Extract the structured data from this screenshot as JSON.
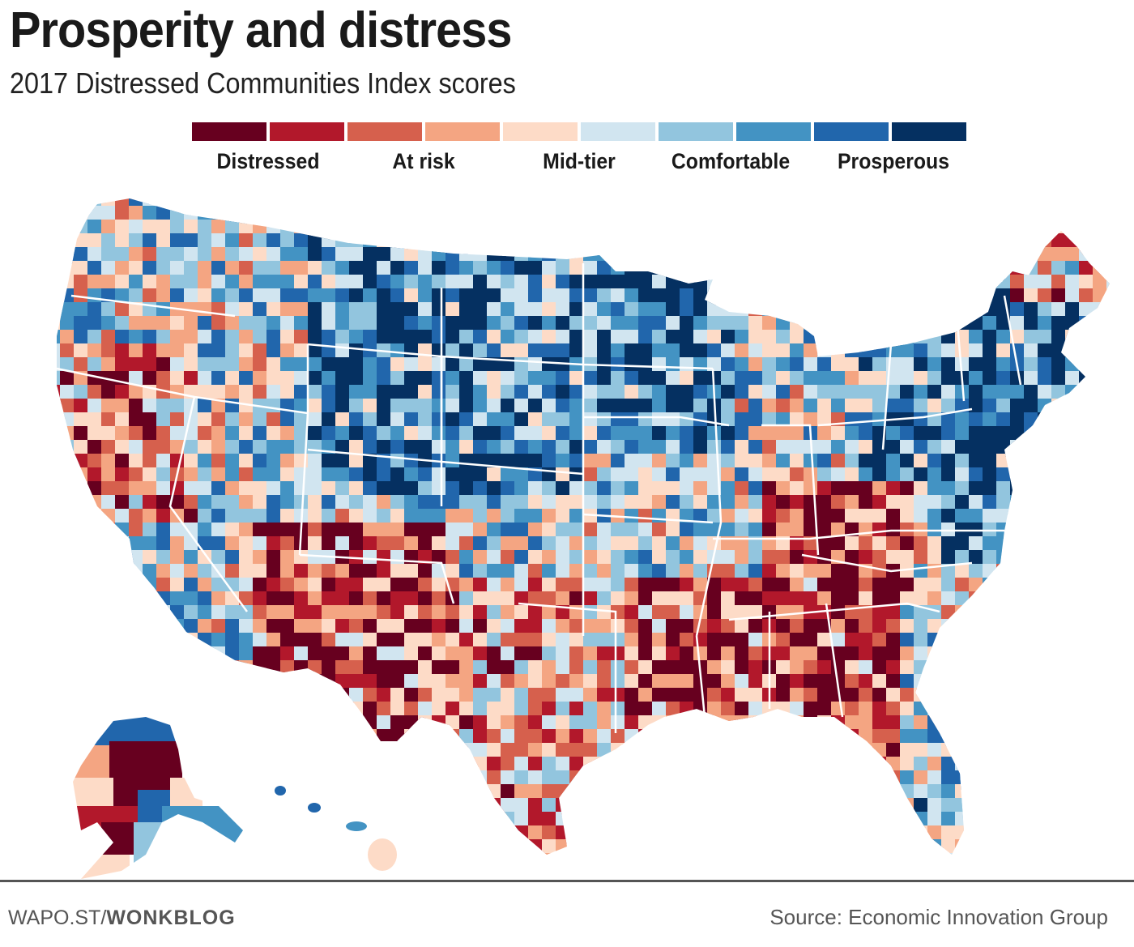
{
  "header": {
    "title": "Prosperity and distress",
    "subtitle": "2017 Distressed Communities Index scores"
  },
  "legend": {
    "swatches": [
      "#67001f",
      "#b2182b",
      "#d6604d",
      "#f4a582",
      "#fddbc7",
      "#d1e5f0",
      "#92c5de",
      "#4393c3",
      "#2166ac",
      "#053061"
    ],
    "labels": [
      "Distressed",
      "At risk",
      "Mid-tier",
      "Comfortable",
      "Prosperous"
    ]
  },
  "footer": {
    "credit_prefix": "WAPO.ST/",
    "credit_bold": "WONKBLOG",
    "source": "Source: Economic Innovation Group"
  },
  "chart_data": {
    "type": "heatmap",
    "subtype": "choropleth",
    "title": "Prosperity and distress",
    "subtitle": "2017 Distressed Communities Index scores",
    "geography": "U.S. counties (contiguous states, Alaska, Hawaii)",
    "color_scale": {
      "bins": 10,
      "categories": [
        "Distressed",
        "At risk",
        "Mid-tier",
        "Comfortable",
        "Prosperous"
      ],
      "colors": [
        "#67001f",
        "#b2182b",
        "#d6604d",
        "#f4a582",
        "#fddbc7",
        "#d1e5f0",
        "#92c5de",
        "#4393c3",
        "#2166ac",
        "#053061"
      ]
    },
    "legend_position": "top-center",
    "regional_pattern": [
      {
        "region": "Pacific Northwest coast",
        "dominant": "mixed, mostly Comfortable/Prosperous"
      },
      {
        "region": "Northern California / Southern Oregon",
        "dominant": "At risk/Distressed"
      },
      {
        "region": "Nevada / Utah",
        "dominant": "Comfortable/Prosperous with Mid-tier"
      },
      {
        "region": "Northern Plains (Dakotas, Nebraska, Iowa)",
        "dominant": "Prosperous/Comfortable"
      },
      {
        "region": "Southwest (Arizona, New Mexico)",
        "dominant": "Distressed/At risk"
      },
      {
        "region": "Texas",
        "dominant": "mixed, Distressed along border"
      },
      {
        "region": "Deep South (Mississippi, Alabama, Georgia)",
        "dominant": "Distressed"
      },
      {
        "region": "Appalachia (Kentucky, West Virginia)",
        "dominant": "Distressed"
      },
      {
        "region": "Upper Midwest (Minnesota, Wisconsin)",
        "dominant": "Prosperous/Comfortable"
      },
      {
        "region": "Northeast corridor",
        "dominant": "Prosperous"
      },
      {
        "region": "Maine",
        "dominant": "Mid-tier/At risk"
      },
      {
        "region": "Florida",
        "dominant": "Comfortable with some Distressed"
      },
      {
        "region": "Alaska",
        "dominant": "Distressed interior/west, Comfortable south/north"
      },
      {
        "region": "Hawaii",
        "dominant": "Comfortable, Big Island Mid-tier"
      }
    ]
  }
}
